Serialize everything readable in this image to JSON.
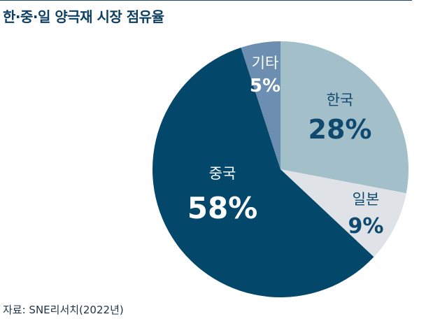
{
  "title": "한·중·일 양극재 시장 점유율",
  "source": "자료: SNE리서치(2022년)",
  "chart_data": {
    "type": "pie",
    "title": "한·중·일 양극재 시장 점유율",
    "slices": [
      {
        "name": "한국",
        "value": 28,
        "label": "28%",
        "color": "#a3bfc9",
        "name_color": "#0f4a6e",
        "value_color": "#0f4a6e"
      },
      {
        "name": "일본",
        "value": 9,
        "label": "9%",
        "color": "#dfe2e6",
        "name_color": "#0f4a6e",
        "value_color": "#0f4a6e"
      },
      {
        "name": "중국",
        "value": 58,
        "label": "58%",
        "color": "#03486b",
        "name_color": "#ffffff",
        "value_color": "#ffffff"
      },
      {
        "name": "기타",
        "value": 5,
        "label": "5%",
        "color": "#6c8eb0",
        "name_color": "#ffffff",
        "value_color": "#ffffff"
      }
    ],
    "start_angle_deg": 0,
    "direction": "clockwise"
  }
}
